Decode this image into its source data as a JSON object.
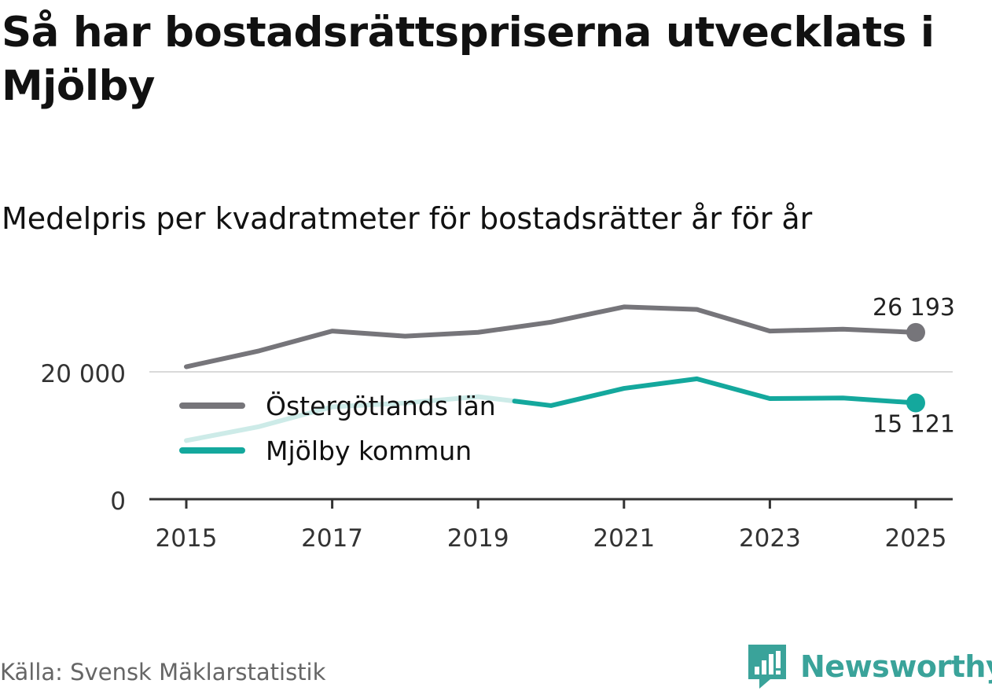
{
  "title": "Så har bostadsrättspriserna utvecklats i Mjölby",
  "subtitle": "Medelpris per kvadratmeter för bostadsrätter år för år",
  "source": "Källa: Svensk Mäklarstatistik",
  "brand": "Newsworthy",
  "colors": {
    "lan": "#76757a",
    "kommun": "#14a89d",
    "kommun_faded": "#cdebe8",
    "grid": "#d9d9d9",
    "axis": "#333333",
    "brand": "#3aa39a"
  },
  "chart_data": {
    "type": "line",
    "x": [
      2015,
      2016,
      2017,
      2018,
      2019,
      2020,
      2021,
      2022,
      2023,
      2024,
      2025
    ],
    "series": [
      {
        "name": "Östergötlands län",
        "values": [
          20800,
          23300,
          26400,
          25600,
          26200,
          27800,
          30200,
          29800,
          26400,
          26700,
          26193
        ],
        "end_label": "26 193"
      },
      {
        "name": "Mjölby kommun",
        "values": [
          9200,
          11400,
          14500,
          15100,
          16100,
          14700,
          17400,
          18900,
          15800,
          15900,
          15121
        ],
        "end_label": "15 121",
        "faded_until": 2019.5
      }
    ],
    "ylim": [
      0,
      30000
    ],
    "yticks": [
      {
        "value": 0,
        "label": "0"
      },
      {
        "value": 20000,
        "label": "20 000"
      }
    ],
    "xticks": [
      2015,
      2017,
      2019,
      2021,
      2023,
      2025
    ],
    "legend": [
      "Östergötlands län",
      "Mjölby kommun"
    ],
    "legend_position": "left, below gridline",
    "grid": true
  }
}
